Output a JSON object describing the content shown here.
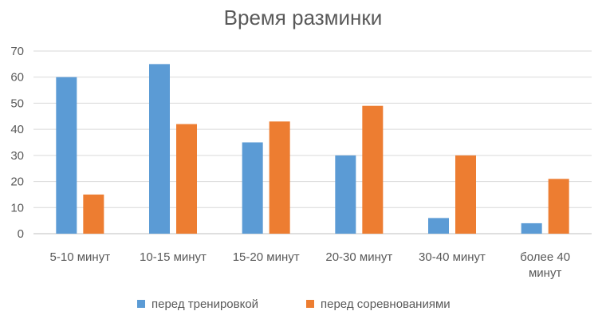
{
  "chart_data": {
    "type": "bar",
    "title": "Время разминки",
    "categories": [
      "5-10 минут",
      "10-15 минут",
      "15-20 минут",
      "20-30 минут",
      "30-40 минут",
      "более 40 минут"
    ],
    "category_lines": [
      [
        "5-10 минут"
      ],
      [
        "10-15 минут"
      ],
      [
        "15-20 минут"
      ],
      [
        "20-30 минут"
      ],
      [
        "30-40 минут"
      ],
      [
        "более 40",
        "минут"
      ]
    ],
    "series": [
      {
        "name": "перед тренировкой",
        "color": "#5b9bd5",
        "values": [
          60,
          65,
          35,
          30,
          6,
          4
        ]
      },
      {
        "name": "перед соревнованиями",
        "color": "#ed7d31",
        "values": [
          15,
          42,
          43,
          49,
          30,
          21
        ]
      }
    ],
    "ylim": [
      0,
      70
    ],
    "yticks": [
      0,
      10,
      20,
      30,
      40,
      50,
      60,
      70
    ],
    "grid": true,
    "legend_position": "bottom"
  }
}
